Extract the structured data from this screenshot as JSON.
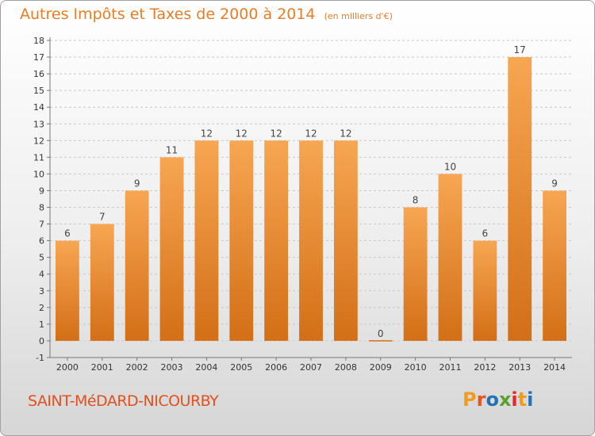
{
  "header": {
    "title": "Autres Impôts et Taxes de 2000 à 2014",
    "unit": "(en milliers d'€)"
  },
  "footer": {
    "commune": "SAINT-MéDARD-NICOURBY",
    "brand_letters": [
      "P",
      "r",
      "o",
      "x",
      "i",
      "t",
      "i"
    ],
    "brand_colors": [
      "#f29b1c",
      "#e8541e",
      "#1f73b8",
      "#5aa02c",
      "#e3262d",
      "#f29b1c",
      "#1f73b8"
    ]
  },
  "colors": {
    "bar_top": "#f7a652",
    "bar_bottom": "#d36f16",
    "title": "#ea7d24",
    "commune": "#e2501e"
  },
  "chart_data": {
    "type": "bar",
    "title": "Autres Impôts et Taxes de 2000 à 2014",
    "subtitle": "(en milliers d'€)",
    "xlabel": "",
    "ylabel": "",
    "categories": [
      "2000",
      "2001",
      "2002",
      "2003",
      "2004",
      "2005",
      "2006",
      "2007",
      "2008",
      "2009",
      "2010",
      "2011",
      "2012",
      "2013",
      "2014"
    ],
    "values": [
      6,
      7,
      9,
      11,
      12,
      12,
      12,
      12,
      12,
      0,
      8,
      10,
      6,
      17,
      9
    ],
    "ylim": [
      -1,
      18
    ],
    "yticks": [
      -1,
      0,
      1,
      2,
      3,
      4,
      5,
      6,
      7,
      8,
      9,
      10,
      11,
      12,
      13,
      14,
      15,
      16,
      17,
      18
    ],
    "grid": true,
    "legend": "none"
  }
}
